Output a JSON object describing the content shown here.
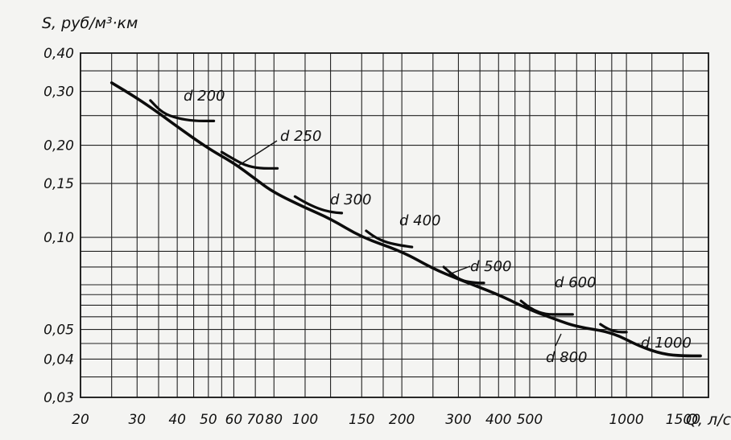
{
  "chart_data": {
    "type": "line",
    "xlabel": "Q, л/с",
    "ylabel": "S, руб/м³·км",
    "xscale": "log",
    "yscale": "log",
    "xlim": [
      20,
      1800
    ],
    "ylim": [
      0.03,
      0.4
    ],
    "grid": true,
    "x_ticks": [
      20,
      30,
      40,
      50,
      60,
      70,
      80,
      100,
      150,
      200,
      300,
      400,
      500,
      1000,
      1500
    ],
    "x_tick_labels": [
      "20",
      "30",
      "40",
      "50",
      "60",
      "70",
      "80",
      "100",
      "150",
      "200",
      "300",
      "400",
      "500",
      "1000",
      "1500"
    ],
    "y_ticks": [
      0.03,
      0.04,
      0.05,
      0.1,
      0.15,
      0.2,
      0.3,
      0.4
    ],
    "y_tick_labels": [
      "0,03",
      "0,04",
      "0,05",
      "0,10",
      "0,15",
      "0,20",
      "0,30",
      "0,40"
    ],
    "extra_x_gridlines": [
      25,
      35,
      45,
      55,
      120,
      175,
      250,
      350,
      450,
      600,
      700,
      800,
      900,
      1200
    ],
    "extra_y_gridlines": [
      0.035,
      0.045,
      0.055,
      0.06,
      0.065,
      0.07,
      0.08,
      0.09,
      0.25,
      0.35
    ],
    "series": [
      {
        "name": "",
        "x": [
          25,
          30,
          35,
          40,
          50,
          60,
          70,
          80,
          100,
          120,
          150,
          200,
          250,
          300,
          400,
          500,
          600,
          700,
          900,
          1100,
          1300,
          1500,
          1700
        ],
        "y": [
          0.32,
          0.285,
          0.255,
          0.23,
          0.195,
          0.175,
          0.155,
          0.14,
          0.125,
          0.115,
          0.1,
          0.09,
          0.079,
          0.073,
          0.065,
          0.058,
          0.054,
          0.051,
          0.049,
          0.044,
          0.0415,
          0.041,
          0.041
        ]
      }
    ],
    "branches": [
      {
        "name": "d 200",
        "x": [
          33,
          36,
          40,
          45,
          52
        ],
        "y": [
          0.28,
          0.255,
          0.245,
          0.24,
          0.24
        ]
      },
      {
        "name": "d 250",
        "x": [
          55,
          60,
          65,
          72,
          82
        ],
        "y": [
          0.19,
          0.18,
          0.172,
          0.168,
          0.168
        ]
      },
      {
        "name": "d 300",
        "x": [
          93,
          100,
          110,
          120,
          130
        ],
        "y": [
          0.136,
          0.13,
          0.124,
          0.121,
          0.12
        ]
      },
      {
        "name": "d 400",
        "x": [
          155,
          165,
          180,
          200,
          215
        ],
        "y": [
          0.105,
          0.1,
          0.096,
          0.094,
          0.093
        ]
      },
      {
        "name": "d 500",
        "x": [
          270,
          290,
          310,
          340,
          360
        ],
        "y": [
          0.08,
          0.075,
          0.072,
          0.071,
          0.071
        ]
      },
      {
        "name": "d 600",
        "x": [
          470,
          510,
          560,
          620,
          680
        ],
        "y": [
          0.062,
          0.058,
          0.056,
          0.056,
          0.056
        ]
      },
      {
        "name": "d 800",
        "x": [
          830,
          880,
          940,
          1000
        ],
        "y": [
          0.052,
          0.05,
          0.049,
          0.049
        ]
      }
    ],
    "curve_labels": [
      "d 200",
      "d 250",
      "d 300",
      "d 400",
      "d 500",
      "d 600",
      "d 800",
      "d 1000"
    ]
  }
}
